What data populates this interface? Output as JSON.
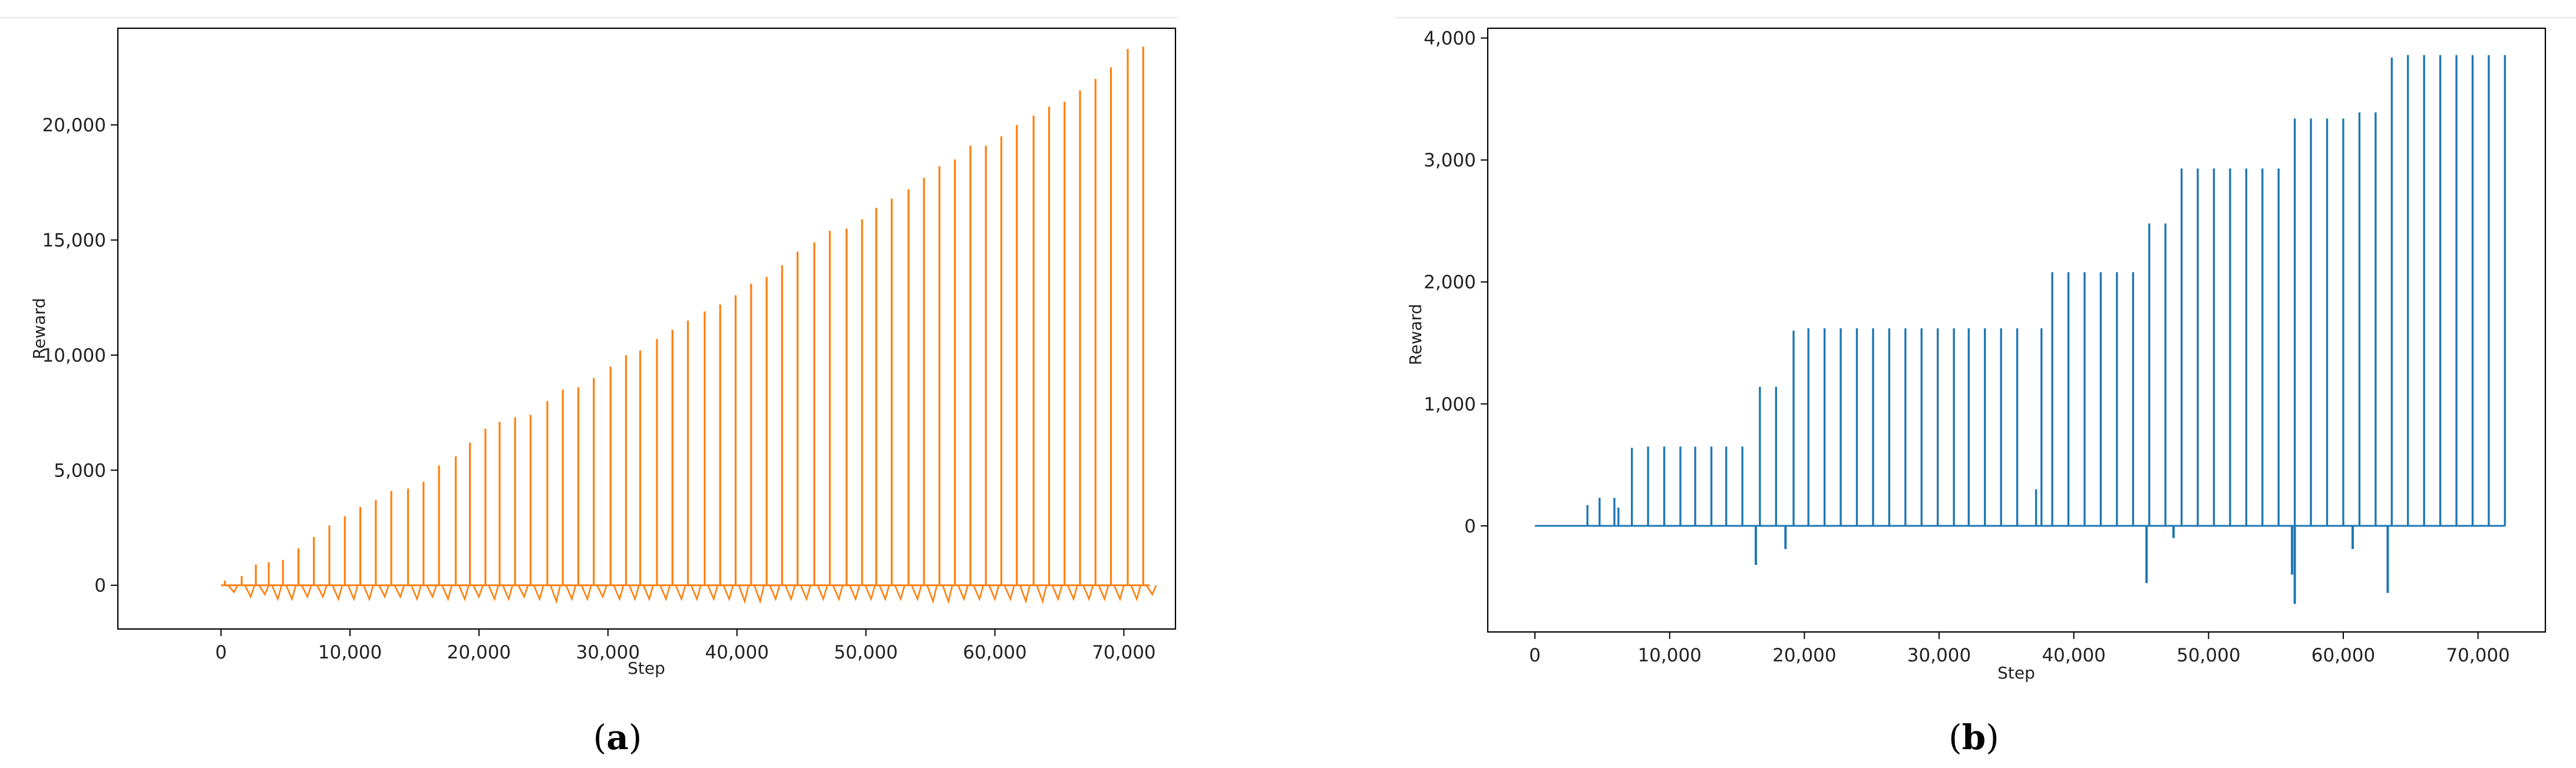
{
  "chart_data": [
    {
      "type": "line",
      "panel_label_open": "(",
      "panel_label_letter": "a",
      "panel_label_close": ")",
      "xlabel": "Step",
      "ylabel": "Reward",
      "xlim": [
        -8000,
        74000
      ],
      "ylim": [
        -1900,
        24200
      ],
      "xticks": [
        0,
        10000,
        20000,
        30000,
        40000,
        50000,
        60000,
        70000
      ],
      "xtick_labels": [
        "0",
        "10,000",
        "20,000",
        "30,000",
        "40,000",
        "50,000",
        "60,000",
        "70,000"
      ],
      "yticks": [
        0,
        5000,
        10000,
        15000,
        20000
      ],
      "ytick_labels": [
        "0",
        "5,000",
        "10,000",
        "15,000",
        "20,000"
      ],
      "grid": false,
      "series": [
        {
          "color": "#ff7f0e",
          "peaks_x": [
            300,
            1600,
            2700,
            3700,
            4800,
            6000,
            7200,
            8400,
            9600,
            10800,
            12000,
            13200,
            14500,
            15700,
            16900,
            18200,
            19300,
            20500,
            21600,
            22800,
            24000,
            25300,
            26500,
            27700,
            28900,
            30200,
            31400,
            32500,
            33800,
            35000,
            36200,
            37500,
            38700,
            39900,
            41100,
            42300,
            43500,
            44700,
            46000,
            47200,
            48500,
            49700,
            50800,
            52000,
            53300,
            54500,
            55700,
            56900,
            58100,
            59300,
            60500,
            61700,
            63000,
            64200,
            65400,
            66600,
            67800,
            69000,
            70300,
            71500
          ],
          "peaks_y": [
            200,
            400,
            900,
            1000,
            1100,
            1600,
            2100,
            2600,
            3000,
            3400,
            3700,
            4100,
            4200,
            4500,
            5200,
            5600,
            6200,
            6800,
            7100,
            7300,
            7400,
            8000,
            8500,
            8600,
            9000,
            9500,
            10000,
            10200,
            10700,
            11100,
            11500,
            11900,
            12200,
            12600,
            13100,
            13400,
            13900,
            14500,
            14900,
            15400,
            15500,
            15900,
            16400,
            16800,
            17200,
            17700,
            18200,
            18500,
            19100,
            19100,
            19500,
            20000,
            20400,
            20800,
            21000,
            21500,
            22000,
            22500,
            23300,
            23400
          ],
          "dips_y": [
            -300,
            -500,
            -400,
            -600,
            -600,
            -500,
            -500,
            -600,
            -600,
            -600,
            -500,
            -500,
            -600,
            -500,
            -600,
            -600,
            -500,
            -600,
            -600,
            -500,
            -600,
            -700,
            -600,
            -600,
            -500,
            -600,
            -600,
            -600,
            -600,
            -600,
            -600,
            -600,
            -600,
            -700,
            -700,
            -600,
            -600,
            -600,
            -600,
            -600,
            -600,
            -600,
            -600,
            -600,
            -600,
            -700,
            -700,
            -600,
            -600,
            -600,
            -600,
            -700,
            -700,
            -600,
            -600,
            -600,
            -600,
            -600,
            -600,
            -400
          ],
          "x_end": 72000
        }
      ]
    },
    {
      "type": "line",
      "panel_label_open": "(",
      "panel_label_letter": "b",
      "panel_label_close": ")",
      "xlabel": "Step",
      "ylabel": "Reward",
      "xlim": [
        -3500,
        75000
      ],
      "ylim": [
        -870,
        4080
      ],
      "xticks": [
        0,
        10000,
        20000,
        30000,
        40000,
        50000,
        60000,
        70000
      ],
      "xtick_labels": [
        "0",
        "10,000",
        "20,000",
        "30,000",
        "40,000",
        "50,000",
        "60,000",
        "70,000"
      ],
      "yticks": [
        0,
        1000,
        2000,
        3000,
        4000
      ],
      "ytick_labels": [
        "0",
        "1,000",
        "2,000",
        "3,000",
        "4,000"
      ],
      "grid": false,
      "series": [
        {
          "color": "#1f77b4",
          "spikes_x": [
            3900,
            4800,
            5900,
            6200,
            7200,
            8400,
            9600,
            10800,
            11900,
            13100,
            14200,
            15400,
            16700,
            17900,
            19200,
            20300,
            21500,
            22700,
            23900,
            25100,
            26300,
            27500,
            28700,
            29900,
            31100,
            32200,
            33400,
            34600,
            35800,
            37200,
            37600,
            38400,
            39600,
            40800,
            42000,
            43200,
            44400,
            45600,
            46800,
            48000,
            49200,
            50400,
            51600,
            52800,
            54000,
            55200,
            56400,
            57600,
            58800,
            60000,
            61200,
            62400,
            63600,
            64800,
            66000,
            67200,
            68400,
            69600,
            70800,
            72000
          ],
          "spikes_y": [
            170,
            230,
            230,
            150,
            640,
            650,
            650,
            650,
            650,
            650,
            650,
            650,
            1140,
            1140,
            1600,
            1620,
            1620,
            1620,
            1620,
            1620,
            1620,
            1620,
            1620,
            1620,
            1620,
            1620,
            1620,
            1620,
            1620,
            300,
            1620,
            2080,
            2080,
            2080,
            2080,
            2080,
            2080,
            2480,
            2480,
            2930,
            2930,
            2930,
            2930,
            2930,
            2930,
            2930,
            3340,
            3340,
            3340,
            3340,
            3390,
            3390,
            3840,
            3860,
            3860,
            3860,
            3860,
            3860,
            3860,
            3860
          ],
          "dips_x": [
            16400,
            18600,
            45400,
            47400,
            56200,
            56400,
            60700,
            63300
          ],
          "dips_y": [
            -320,
            -190,
            -470,
            -100,
            -400,
            -640,
            -190,
            -550
          ],
          "x_end": 72000
        }
      ]
    }
  ]
}
